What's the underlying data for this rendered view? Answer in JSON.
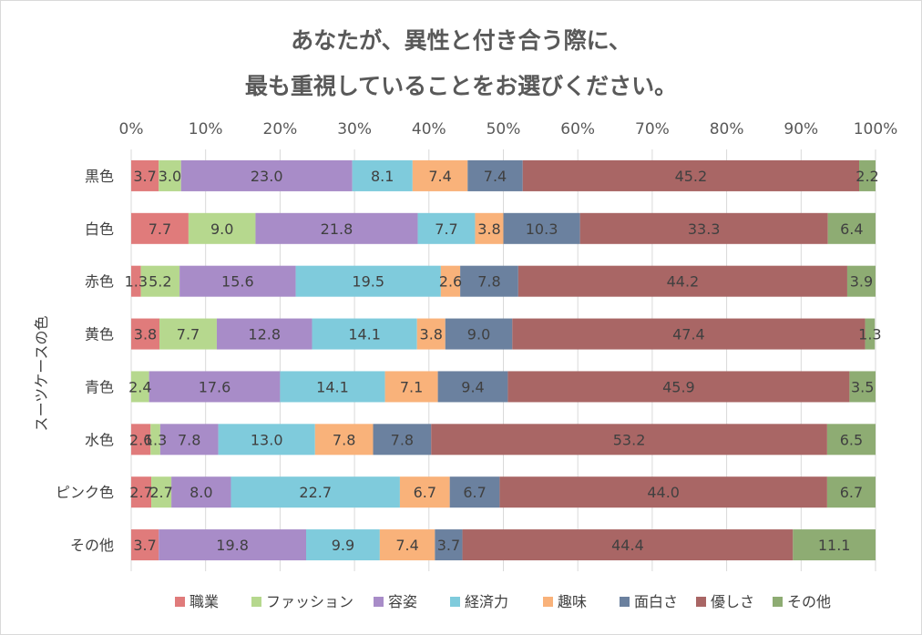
{
  "chart_data": {
    "type": "bar",
    "orientation": "horizontal",
    "stacked": "percent",
    "title_lines": [
      "あなたが、異性と付き合う際に、",
      "最も重視していることをお選びください。"
    ],
    "ylabel": "スーツケースの色",
    "xlim": [
      0,
      100
    ],
    "x_ticks": [
      "0%",
      "10%",
      "20%",
      "30%",
      "40%",
      "50%",
      "60%",
      "70%",
      "80%",
      "90%",
      "100%"
    ],
    "grid": true,
    "legend_position": "bottom",
    "categories": [
      "黒色",
      "白色",
      "赤色",
      "黄色",
      "青色",
      "水色",
      "ピンク色",
      "その他"
    ],
    "series": [
      {
        "name": "職業",
        "color": "#e07b7b",
        "values": [
          3.7,
          7.7,
          1.3,
          3.8,
          0,
          2.6,
          2.7,
          3.7
        ],
        "labels": [
          "3.7",
          "7.7",
          "1.3",
          "3.8",
          "",
          "2.6",
          "2.7",
          "3.7"
        ]
      },
      {
        "name": "ファッション",
        "color": "#b6d88e",
        "values": [
          3.0,
          9.0,
          5.2,
          7.7,
          2.4,
          1.3,
          2.7,
          0
        ],
        "labels": [
          "3.0",
          "9.0",
          "5.2",
          "7.7",
          "2.4",
          "1.3",
          "2.7",
          ""
        ]
      },
      {
        "name": "容姿",
        "color": "#a88cc8",
        "values": [
          23.0,
          21.8,
          15.6,
          12.8,
          17.6,
          7.8,
          8.0,
          19.8
        ],
        "labels": [
          "23.0",
          "21.8",
          "15.6",
          "12.8",
          "17.6",
          "7.8",
          "8.0",
          "19.8"
        ]
      },
      {
        "name": "経済力",
        "color": "#7fcbdc",
        "values": [
          8.1,
          7.7,
          19.5,
          14.1,
          14.1,
          13.0,
          22.7,
          9.9
        ],
        "labels": [
          "8.1",
          "7.7",
          "19.5",
          "14.1",
          "14.1",
          "13.0",
          "22.7",
          "9.9"
        ]
      },
      {
        "name": "趣味",
        "color": "#f9b27a",
        "values": [
          7.4,
          3.8,
          2.6,
          3.8,
          7.1,
          7.8,
          6.7,
          7.4
        ],
        "labels": [
          "7.4",
          "3.8",
          "2.6",
          "3.8",
          "7.1",
          "7.8",
          "6.7",
          "7.4"
        ]
      },
      {
        "name": "面白さ",
        "color": "#6b819f",
        "values": [
          7.4,
          10.3,
          7.8,
          9.0,
          9.4,
          7.8,
          6.7,
          3.7
        ],
        "labels": [
          "7.4",
          "10.3",
          "7.8",
          "9.0",
          "9.4",
          "7.8",
          "6.7",
          "3.7"
        ]
      },
      {
        "name": "優しさ",
        "color": "#a96665",
        "values": [
          45.2,
          33.3,
          44.2,
          47.4,
          45.9,
          53.2,
          44.0,
          44.4
        ],
        "labels": [
          "45.2",
          "33.3",
          "44.2",
          "47.4",
          "45.9",
          "53.2",
          "44.0",
          "44.4"
        ]
      },
      {
        "name": "その他",
        "color": "#8eac73",
        "values": [
          2.2,
          6.4,
          3.9,
          1.3,
          3.5,
          6.5,
          6.7,
          11.1
        ],
        "labels": [
          "2.2",
          "6.4",
          "3.9",
          "1.3",
          "3.5",
          "6.5",
          "6.7",
          "11.1"
        ]
      }
    ]
  }
}
